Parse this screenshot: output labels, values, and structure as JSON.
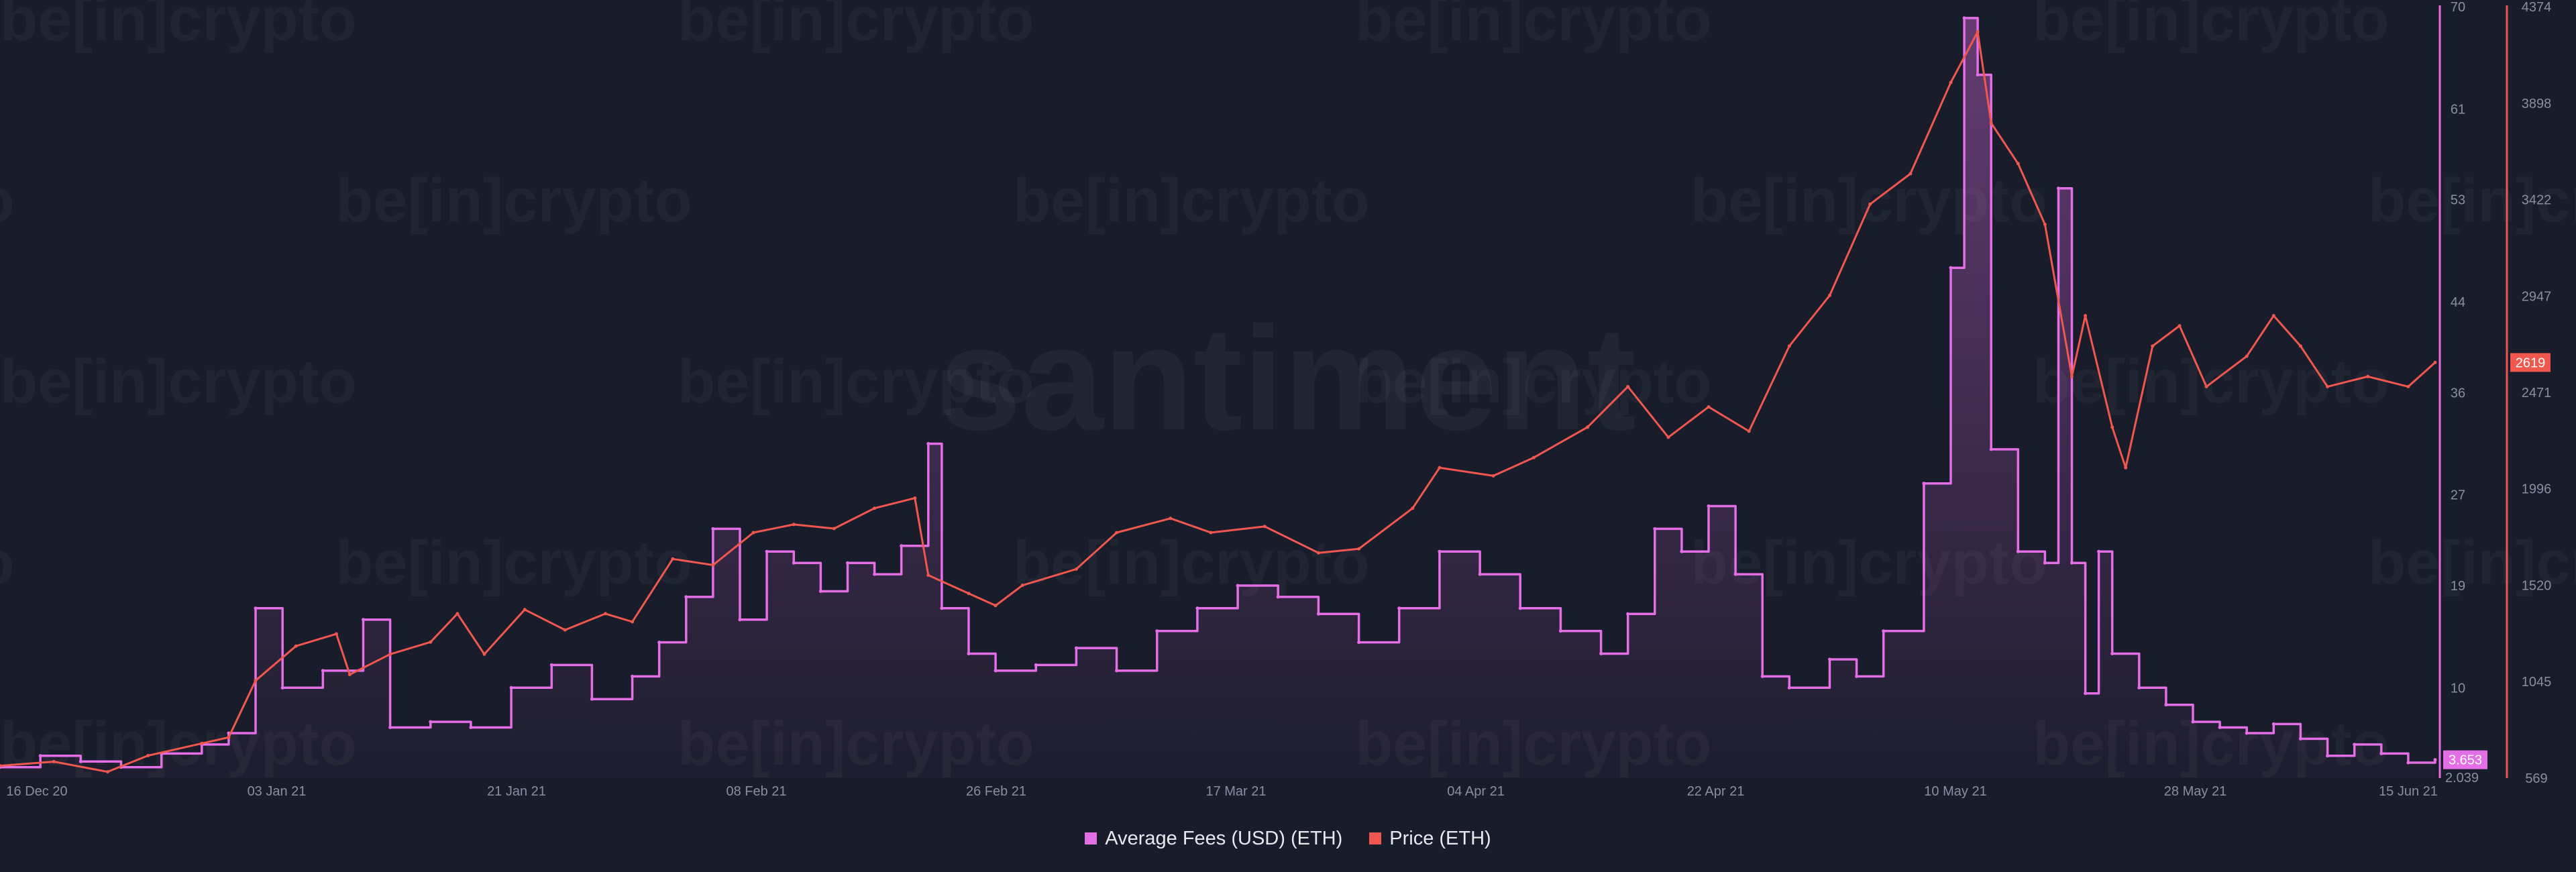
{
  "watermarks": {
    "brand": "be[in]crypto",
    "center": "santiment"
  },
  "colors": {
    "background": "#191c2b",
    "fees": "#e36ee6",
    "price": "#f0574f",
    "axis_text": "#8a8e9e",
    "legend_text": "#e8e9ee"
  },
  "legend": {
    "items": [
      {
        "label": "Average Fees (USD) (ETH)",
        "color": "#e36ee6"
      },
      {
        "label": "Price (ETH)",
        "color": "#f0574f"
      }
    ]
  },
  "chart_data": {
    "type": "line",
    "title": "",
    "x_ticks": [
      "16 Dec 20",
      "03 Jan 21",
      "21 Jan 21",
      "08 Feb 21",
      "26 Feb 21",
      "17 Mar 21",
      "04 Apr 21",
      "22 Apr 21",
      "10 May 21",
      "28 May 21",
      "15 Jun 21"
    ],
    "x_range": [
      "2020-12-16",
      "2021-06-15"
    ],
    "fees_axis": {
      "ticks": [
        70,
        61,
        53,
        44,
        36,
        27,
        19,
        10
      ],
      "min_label": "2.039",
      "range": [
        2.039,
        70
      ],
      "current_value": "3.653"
    },
    "price_axis": {
      "ticks": [
        4374,
        3898,
        3422,
        2947,
        2471,
        1996,
        1520,
        1045,
        569
      ],
      "range": [
        569,
        4374
      ],
      "current_value": "2619"
    },
    "series": [
      {
        "name": "Average Fees (USD) (ETH)",
        "axis": "fees",
        "points": [
          [
            "2020-12-16",
            3.0
          ],
          [
            "2020-12-19",
            4.0
          ],
          [
            "2020-12-22",
            3.5
          ],
          [
            "2020-12-25",
            3.0
          ],
          [
            "2020-12-28",
            4.2
          ],
          [
            "2020-12-31",
            5.0
          ],
          [
            "2021-01-02",
            6.0
          ],
          [
            "2021-01-04",
            17.0
          ],
          [
            "2021-01-06",
            10.0
          ],
          [
            "2021-01-09",
            11.5
          ],
          [
            "2021-01-12",
            16.0
          ],
          [
            "2021-01-14",
            6.5
          ],
          [
            "2021-01-17",
            7.0
          ],
          [
            "2021-01-20",
            6.5
          ],
          [
            "2021-01-23",
            10.0
          ],
          [
            "2021-01-26",
            12.0
          ],
          [
            "2021-01-29",
            9.0
          ],
          [
            "2021-02-01",
            11.0
          ],
          [
            "2021-02-03",
            14.0
          ],
          [
            "2021-02-05",
            18.0
          ],
          [
            "2021-02-07",
            24.0
          ],
          [
            "2021-02-09",
            16.0
          ],
          [
            "2021-02-11",
            22.0
          ],
          [
            "2021-02-13",
            21.0
          ],
          [
            "2021-02-15",
            18.5
          ],
          [
            "2021-02-17",
            21.0
          ],
          [
            "2021-02-19",
            20.0
          ],
          [
            "2021-02-21",
            22.5
          ],
          [
            "2021-02-23",
            31.5
          ],
          [
            "2021-02-24",
            17.0
          ],
          [
            "2021-02-26",
            13.0
          ],
          [
            "2021-02-28",
            11.5
          ],
          [
            "2021-03-03",
            12.0
          ],
          [
            "2021-03-06",
            13.5
          ],
          [
            "2021-03-09",
            11.5
          ],
          [
            "2021-03-12",
            15.0
          ],
          [
            "2021-03-15",
            17.0
          ],
          [
            "2021-03-18",
            19.0
          ],
          [
            "2021-03-21",
            18.0
          ],
          [
            "2021-03-24",
            16.5
          ],
          [
            "2021-03-27",
            14.0
          ],
          [
            "2021-03-30",
            17.0
          ],
          [
            "2021-04-02",
            22.0
          ],
          [
            "2021-04-05",
            20.0
          ],
          [
            "2021-04-08",
            17.0
          ],
          [
            "2021-04-11",
            15.0
          ],
          [
            "2021-04-14",
            13.0
          ],
          [
            "2021-04-16",
            16.5
          ],
          [
            "2021-04-18",
            24.0
          ],
          [
            "2021-04-20",
            22.0
          ],
          [
            "2021-04-22",
            26.0
          ],
          [
            "2021-04-24",
            20.0
          ],
          [
            "2021-04-26",
            11.0
          ],
          [
            "2021-04-28",
            10.0
          ],
          [
            "2021-05-01",
            12.5
          ],
          [
            "2021-05-03",
            11.0
          ],
          [
            "2021-05-05",
            15.0
          ],
          [
            "2021-05-08",
            28.0
          ],
          [
            "2021-05-10",
            47.0
          ],
          [
            "2021-05-11",
            69.0
          ],
          [
            "2021-05-12",
            64.0
          ],
          [
            "2021-05-13",
            31.0
          ],
          [
            "2021-05-15",
            22.0
          ],
          [
            "2021-05-17",
            21.0
          ],
          [
            "2021-05-18",
            54.0
          ],
          [
            "2021-05-19",
            21.0
          ],
          [
            "2021-05-20",
            9.5
          ],
          [
            "2021-05-21",
            22.0
          ],
          [
            "2021-05-22",
            13.0
          ],
          [
            "2021-05-24",
            10.0
          ],
          [
            "2021-05-26",
            8.5
          ],
          [
            "2021-05-28",
            7.0
          ],
          [
            "2021-05-30",
            6.5
          ],
          [
            "2021-06-01",
            6.0
          ],
          [
            "2021-06-03",
            6.8
          ],
          [
            "2021-06-05",
            5.5
          ],
          [
            "2021-06-07",
            4.0
          ],
          [
            "2021-06-09",
            5.0
          ],
          [
            "2021-06-11",
            4.2
          ],
          [
            "2021-06-13",
            3.4
          ],
          [
            "2021-06-15",
            3.653
          ]
        ]
      },
      {
        "name": "Price (ETH)",
        "axis": "price",
        "points": [
          [
            "2020-12-16",
            630
          ],
          [
            "2020-12-20",
            650
          ],
          [
            "2020-12-24",
            600
          ],
          [
            "2020-12-27",
            680
          ],
          [
            "2020-12-31",
            740
          ],
          [
            "2021-01-02",
            770
          ],
          [
            "2021-01-04",
            1050
          ],
          [
            "2021-01-07",
            1220
          ],
          [
            "2021-01-10",
            1280
          ],
          [
            "2021-01-11",
            1080
          ],
          [
            "2021-01-14",
            1180
          ],
          [
            "2021-01-17",
            1240
          ],
          [
            "2021-01-19",
            1380
          ],
          [
            "2021-01-21",
            1180
          ],
          [
            "2021-01-24",
            1400
          ],
          [
            "2021-01-27",
            1300
          ],
          [
            "2021-01-30",
            1380
          ],
          [
            "2021-02-01",
            1340
          ],
          [
            "2021-02-04",
            1650
          ],
          [
            "2021-02-07",
            1620
          ],
          [
            "2021-02-10",
            1780
          ],
          [
            "2021-02-13",
            1820
          ],
          [
            "2021-02-16",
            1800
          ],
          [
            "2021-02-19",
            1900
          ],
          [
            "2021-02-22",
            1950
          ],
          [
            "2021-02-23",
            1570
          ],
          [
            "2021-02-26",
            1480
          ],
          [
            "2021-02-28",
            1420
          ],
          [
            "2021-03-02",
            1520
          ],
          [
            "2021-03-06",
            1600
          ],
          [
            "2021-03-09",
            1780
          ],
          [
            "2021-03-13",
            1850
          ],
          [
            "2021-03-16",
            1780
          ],
          [
            "2021-03-20",
            1810
          ],
          [
            "2021-03-24",
            1680
          ],
          [
            "2021-03-27",
            1700
          ],
          [
            "2021-03-31",
            1900
          ],
          [
            "2021-04-02",
            2100
          ],
          [
            "2021-04-06",
            2060
          ],
          [
            "2021-04-09",
            2150
          ],
          [
            "2021-04-13",
            2300
          ],
          [
            "2021-04-16",
            2500
          ],
          [
            "2021-04-19",
            2250
          ],
          [
            "2021-04-22",
            2400
          ],
          [
            "2021-04-25",
            2280
          ],
          [
            "2021-04-28",
            2700
          ],
          [
            "2021-05-01",
            2950
          ],
          [
            "2021-05-04",
            3400
          ],
          [
            "2021-05-07",
            3550
          ],
          [
            "2021-05-10",
            4000
          ],
          [
            "2021-05-12",
            4250
          ],
          [
            "2021-05-13",
            3800
          ],
          [
            "2021-05-15",
            3600
          ],
          [
            "2021-05-17",
            3300
          ],
          [
            "2021-05-19",
            2550
          ],
          [
            "2021-05-20",
            2850
          ],
          [
            "2021-05-22",
            2300
          ],
          [
            "2021-05-23",
            2100
          ],
          [
            "2021-05-25",
            2700
          ],
          [
            "2021-05-27",
            2800
          ],
          [
            "2021-05-29",
            2500
          ],
          [
            "2021-06-01",
            2650
          ],
          [
            "2021-06-03",
            2850
          ],
          [
            "2021-06-05",
            2700
          ],
          [
            "2021-06-07",
            2500
          ],
          [
            "2021-06-10",
            2550
          ],
          [
            "2021-06-13",
            2500
          ],
          [
            "2021-06-15",
            2619
          ]
        ]
      }
    ],
    "legend_position": "bottom-center",
    "grid": false
  }
}
